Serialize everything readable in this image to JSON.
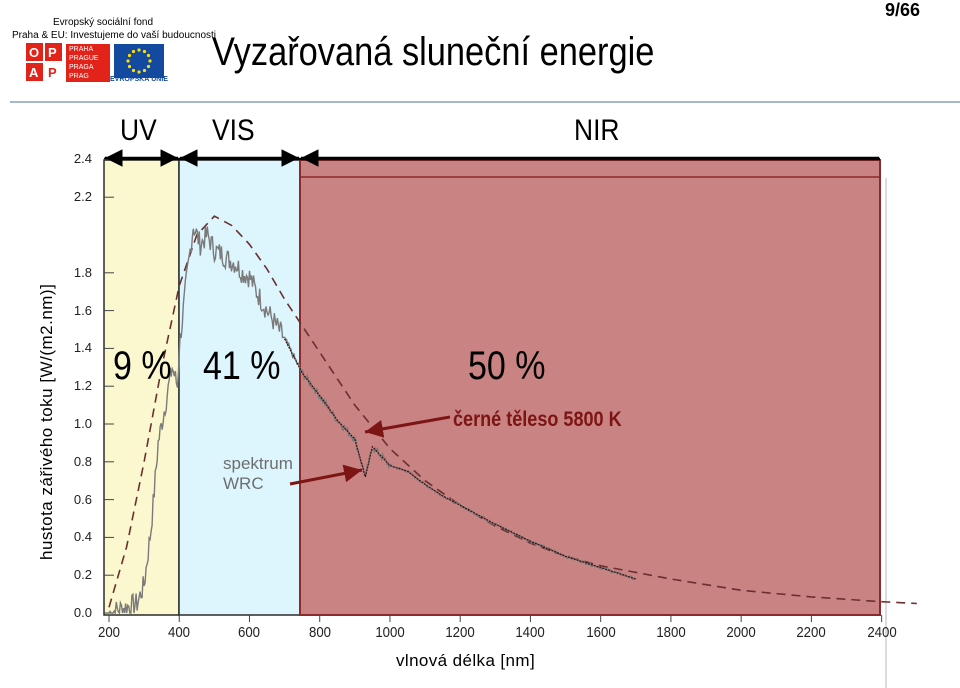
{
  "logo": {
    "line1": "Evropský sociální fond",
    "line2": "Praha & EU: Investujeme do vaší budoucnosti",
    "opp": "O P P A",
    "praha": "PRAHA PRAGUE PRAGA PRAG",
    "eu_caption": "EVROPSKÁ UNIE"
  },
  "page_number": "9/66",
  "title": "Vyzařovaná sluneční energie",
  "bands": {
    "uv": {
      "label": "UV",
      "percent": "9 %",
      "range": [
        100,
        400
      ],
      "color": "#fbf8cf"
    },
    "vis": {
      "label": "VIS",
      "percent": "41 %",
      "range": [
        400,
        700
      ],
      "color": "#ddf5fd"
    },
    "nir": {
      "label": "NIR",
      "percent": "50 %",
      "range": [
        700,
        2500
      ],
      "color": "#c88382"
    }
  },
  "annotations": {
    "blackbody": "černé těleso 5800 K",
    "wrc_line1": "spektrum",
    "wrc_line2": "WRC"
  },
  "chart_data": {
    "type": "line",
    "title": "Vyzařovaná sluneční energie",
    "xlabel": "vlnová délka [nm]",
    "ylabel": "hustota zářivého toku [W/(m2.nm)]",
    "xlim": [
      130,
      2500
    ],
    "ylim": [
      0,
      2.4
    ],
    "x_ticks": [
      "200",
      "400",
      "600",
      "800",
      "1000",
      "1200",
      "1400",
      "1600",
      "1800",
      "2000",
      "2200",
      "2400"
    ],
    "y_ticks": [
      "0.0",
      "0.2",
      "0.4",
      "0.6",
      "0.8",
      "1.0",
      "1.2",
      "1.4",
      "1.6",
      "1.8",
      "2.2",
      "2.4"
    ],
    "series": [
      {
        "name": "černé těleso 5800 K",
        "style": "dashed",
        "x": [
          200,
          250,
          300,
          350,
          400,
          450,
          500,
          550,
          600,
          650,
          700,
          800,
          900,
          1000,
          1100,
          1200,
          1300,
          1400,
          1500,
          1600,
          1800,
          2000,
          2200,
          2400,
          2500
        ],
        "y": [
          0.03,
          0.35,
          0.8,
          1.3,
          1.73,
          2.0,
          2.1,
          2.05,
          1.95,
          1.82,
          1.66,
          1.38,
          1.1,
          0.87,
          0.7,
          0.57,
          0.46,
          0.37,
          0.3,
          0.25,
          0.18,
          0.12,
          0.085,
          0.06,
          0.05
        ]
      },
      {
        "name": "spektrum WRC",
        "style": "solid",
        "x": [
          200,
          280,
          300,
          320,
          340,
          360,
          380,
          395,
          400,
          420,
          440,
          460,
          480,
          500,
          520,
          540,
          560,
          580,
          600,
          620,
          650,
          700,
          750,
          800,
          850,
          900,
          930,
          950,
          1000,
          1050,
          1100,
          1150,
          1200,
          1300,
          1400,
          1500,
          1600,
          1700
        ],
        "y": [
          0.0,
          0.05,
          0.15,
          0.45,
          0.9,
          1.1,
          1.3,
          1.2,
          1.4,
          1.75,
          2.05,
          1.95,
          2.0,
          1.92,
          1.9,
          1.87,
          1.85,
          1.8,
          1.78,
          1.7,
          1.6,
          1.45,
          1.27,
          1.15,
          1.02,
          0.92,
          0.72,
          0.88,
          0.78,
          0.75,
          0.68,
          0.62,
          0.57,
          0.47,
          0.38,
          0.3,
          0.24,
          0.18
        ]
      }
    ],
    "grid": false
  }
}
